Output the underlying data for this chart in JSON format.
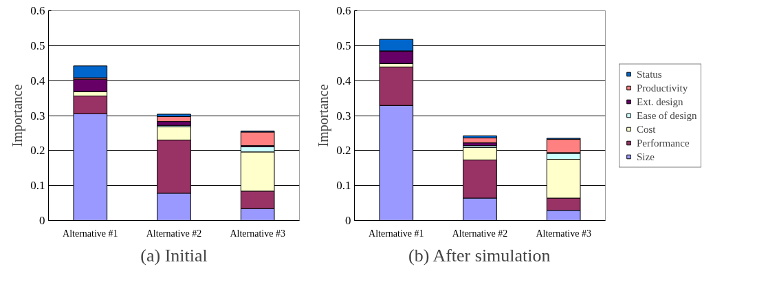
{
  "chart_data": [
    {
      "type": "bar",
      "title": "(a) Initial",
      "ylabel": "Importance",
      "categories": [
        "Alternative #1",
        "Alternative #2",
        "Alternative #3"
      ],
      "stacked": true,
      "ylim": [
        0,
        0.6
      ],
      "yticks": [
        0,
        0.1,
        0.2,
        0.3,
        0.4,
        0.5,
        0.6
      ],
      "grid": "y",
      "legend": false,
      "series": [
        {
          "color": "#9999ff",
          "values": [
            0.305,
            0.078,
            0.034
          ]
        },
        {
          "color": "#993366",
          "values": [
            0.051,
            0.152,
            0.05
          ]
        },
        {
          "color": "#ffffcc",
          "values": [
            0.013,
            0.038,
            0.112
          ]
        },
        {
          "color": "#ccffff",
          "values": [
            null,
            0.004,
            0.015
          ]
        },
        {
          "color": "#660066",
          "values": [
            0.035,
            0.011,
            0.003
          ]
        },
        {
          "color": "#ff8080",
          "values": [
            0.004,
            0.014,
            0.039
          ]
        },
        {
          "color": "#0066cc",
          "values": [
            0.034,
            0.007,
            0.003
          ]
        }
      ]
    },
    {
      "type": "bar",
      "title": "(b) After simulation",
      "ylabel": "Importance",
      "categories": [
        "Alternative #1",
        "Alternative #2",
        "Alternative #3"
      ],
      "stacked": true,
      "ylim": [
        0,
        0.6
      ],
      "yticks": [
        0,
        0.1,
        0.2,
        0.3,
        0.4,
        0.5,
        0.6
      ],
      "grid": "y",
      "legend": "right",
      "series": [
        {
          "name": "Size",
          "color": "#9999ff",
          "values": [
            0.329,
            0.064,
            0.029
          ]
        },
        {
          "name": "Performance",
          "color": "#993366",
          "values": [
            0.11,
            0.109,
            0.035
          ]
        },
        {
          "name": "Cost",
          "color": "#ffffcc",
          "values": [
            0.01,
            0.036,
            0.111
          ]
        },
        {
          "name": "Ease of design",
          "color": "#ccffff",
          "values": [
            null,
            0.005,
            0.017
          ]
        },
        {
          "name": "Ext. design",
          "color": "#660066",
          "values": [
            0.036,
            0.008,
            0.002
          ]
        },
        {
          "name": "Productivity",
          "color": "#ff8080",
          "values": [
            null,
            0.014,
            0.038
          ]
        },
        {
          "name": "Status",
          "color": "#0066cc",
          "values": [
            0.033,
            0.006,
            0.003
          ]
        }
      ]
    }
  ]
}
